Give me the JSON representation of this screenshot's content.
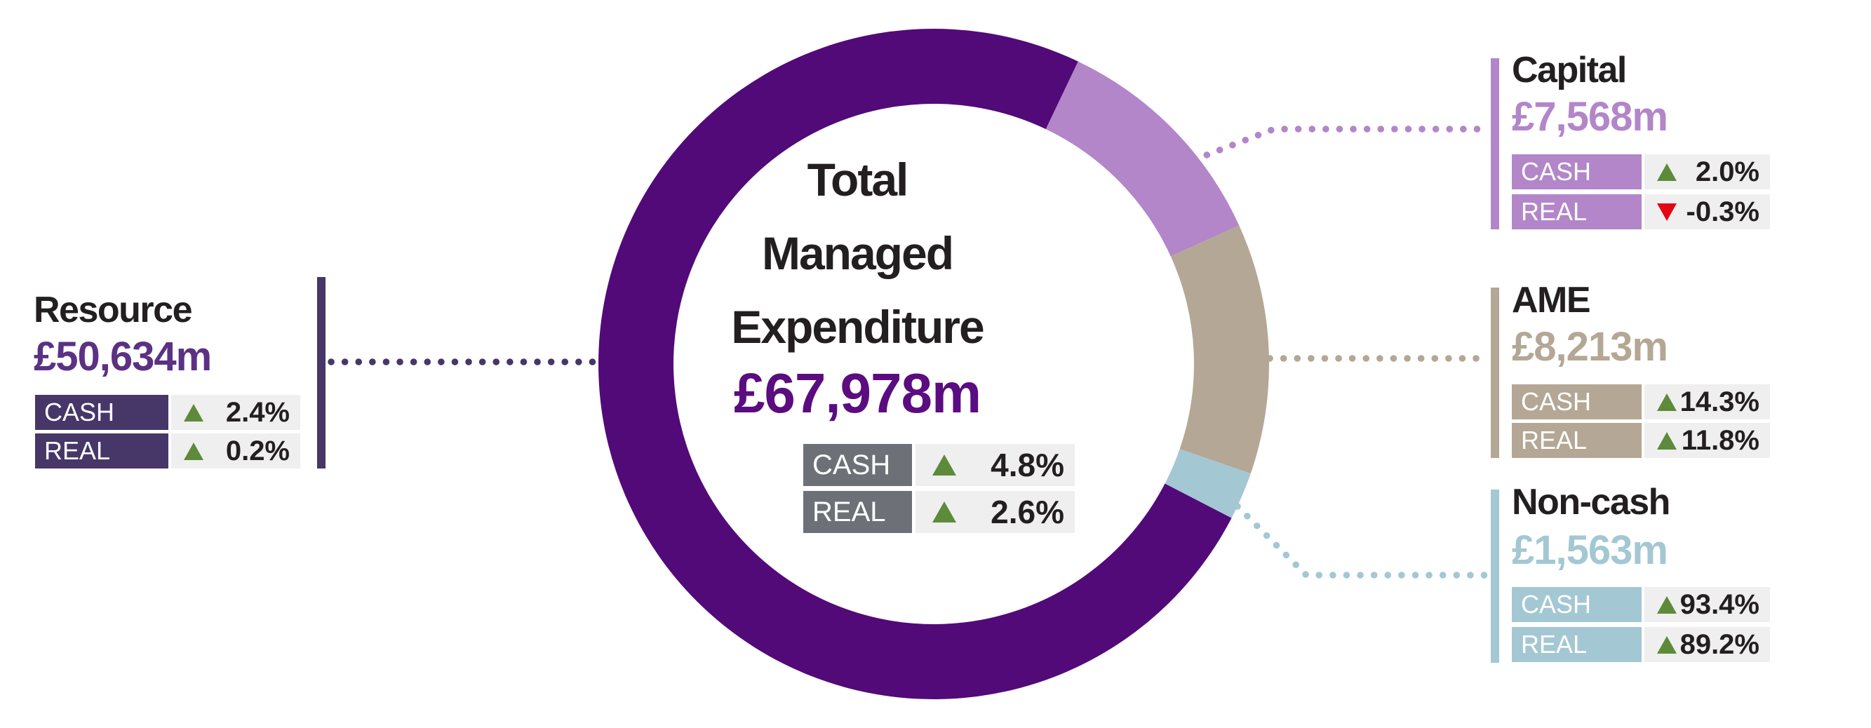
{
  "title": "Total Managed Expenditure infographic",
  "colors": {
    "background": "#ffffff",
    "heading_text": "#231f20",
    "center_value": "#5a0c80",
    "center_label_bg": "#6d7177",
    "row_value_bg": "#efefef",
    "positive_green": "#5e8a3b",
    "negative_red": "#e30613"
  },
  "chart_data": {
    "type": "donut",
    "units": "£m",
    "start_angle_deg": 25.5,
    "legend_position": "callouts",
    "total": {
      "title_lines": [
        "Total",
        "Managed",
        "Expenditure"
      ],
      "value": 67978,
      "value_text": "£67,978m",
      "rows": [
        {
          "label": "CASH",
          "direction": "up",
          "value": "4.8%"
        },
        {
          "label": "REAL",
          "direction": "up",
          "value": "2.6%"
        }
      ]
    },
    "segments": [
      {
        "label": "Resource",
        "value": 50634,
        "value_text": "£50,634m",
        "side": "left",
        "ring_color": "#520a78",
        "block_color": "#463768",
        "value_color": "#5b3184",
        "rows": [
          {
            "label": "CASH",
            "direction": "up",
            "value": "2.4%"
          },
          {
            "label": "REAL",
            "direction": "up",
            "value": "0.2%"
          }
        ]
      },
      {
        "label": "Capital",
        "value": 7568,
        "value_text": "£7,568m",
        "side": "right",
        "ring_color": "#b286c9",
        "block_color": "#b286c9",
        "value_color": "#b286c9",
        "rows": [
          {
            "label": "CASH",
            "direction": "up",
            "value": "2.0%"
          },
          {
            "label": "REAL",
            "direction": "down",
            "value": "-0.3%"
          }
        ]
      },
      {
        "label": "AME",
        "value": 8213,
        "value_text": "£8,213m",
        "side": "right",
        "ring_color": "#b4a795",
        "block_color": "#b4a795",
        "value_color": "#b4a795",
        "rows": [
          {
            "label": "CASH",
            "direction": "up",
            "value": "14.3%"
          },
          {
            "label": "REAL",
            "direction": "up",
            "value": "11.8%"
          }
        ]
      },
      {
        "label": "Non-cash",
        "value": 1563,
        "value_text": "£1,563m",
        "side": "right",
        "ring_color": "#a4c7d4",
        "block_color": "#a4c7d4",
        "value_color": "#a4c7d4",
        "rows": [
          {
            "label": "CASH",
            "direction": "up",
            "value": "93.4%"
          },
          {
            "label": "REAL",
            "direction": "up",
            "value": "89.2%"
          }
        ]
      }
    ]
  }
}
